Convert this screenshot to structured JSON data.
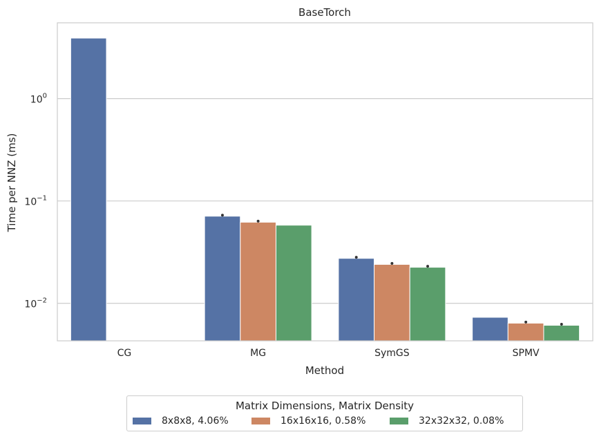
{
  "chart_data": {
    "type": "bar",
    "title": "BaseTorch",
    "xlabel": "Method",
    "ylabel": "Time per NNZ (ms)",
    "yscale": "log",
    "ylim": [
      0.0043,
      5.5
    ],
    "ytick_values": [
      0.01,
      0.1,
      1
    ],
    "yticks": [
      {
        "base": "10",
        "exp": "−2"
      },
      {
        "base": "10",
        "exp": "−1"
      },
      {
        "base": "10",
        "exp": "0"
      }
    ],
    "grid": true,
    "categories": [
      "CG",
      "MG",
      "SymGS",
      "SPMV"
    ],
    "series": [
      {
        "name": "8x8x8, 4.06%",
        "color": "#5572a5",
        "values": [
          3.9,
          0.071,
          0.0275,
          0.0073
        ],
        "error": [
          false,
          true,
          true,
          false
        ]
      },
      {
        "name": "16x16x16, 0.58%",
        "color": "#cd8763",
        "values": [
          null,
          0.062,
          0.024,
          0.0064
        ],
        "error": [
          false,
          true,
          true,
          true
        ]
      },
      {
        "name": "32x32x32, 0.08%",
        "color": "#5a9e6b",
        "values": [
          null,
          0.058,
          0.0225,
          0.0061
        ],
        "error": [
          false,
          false,
          true,
          true
        ]
      }
    ],
    "legend": {
      "title": "Matrix Dimensions, Matrix Density",
      "position": "bottom-center"
    }
  }
}
